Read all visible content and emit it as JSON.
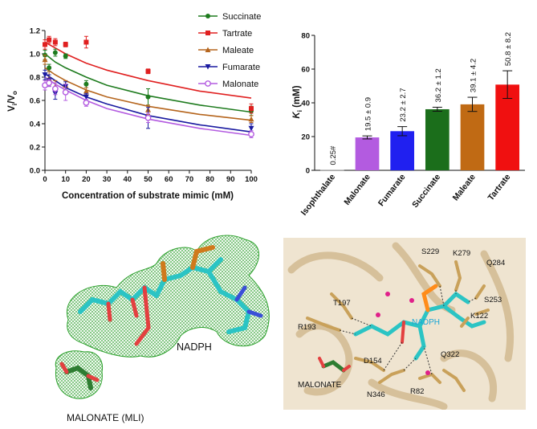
{
  "chart_data": [
    {
      "type": "scatter",
      "xlabel": "Concentration of substrate mimic (mM)",
      "ylabel": "Vi/Vo",
      "xlim": [
        0,
        100
      ],
      "ylim": [
        0,
        1.2
      ],
      "xticks": [
        0,
        10,
        20,
        30,
        40,
        50,
        60,
        70,
        80,
        90,
        100
      ],
      "yticks": [
        0.0,
        0.2,
        0.4,
        0.6,
        0.8,
        1.0,
        1.2
      ],
      "grid": false,
      "legend": "top-center",
      "series": [
        {
          "name": "Succinate",
          "color": "#1e7b1e",
          "marker": "circle",
          "x": [
            0,
            2,
            5,
            10,
            20,
            50,
            100
          ],
          "y": [
            0.99,
            0.88,
            1.01,
            0.98,
            0.74,
            0.63,
            0.51
          ],
          "err": [
            0.04,
            0.03,
            0.03,
            0.02,
            0.03,
            0.07,
            0.04
          ],
          "fit": [
            0,
            1.0,
            5,
            0.93,
            10,
            0.88,
            20,
            0.8,
            30,
            0.73,
            50,
            0.64,
            75,
            0.56,
            100,
            0.5
          ]
        },
        {
          "name": "Tartrate",
          "color": "#e02020",
          "marker": "square",
          "x": [
            0,
            2,
            5,
            10,
            20,
            50,
            100
          ],
          "y": [
            1.08,
            1.12,
            1.1,
            1.08,
            1.1,
            0.85,
            0.53
          ],
          "err": [
            0.04,
            0.03,
            0.03,
            0.02,
            0.05,
            0.02,
            0.04
          ],
          "fit": [
            0,
            1.1,
            5,
            1.05,
            10,
            1.0,
            20,
            0.92,
            30,
            0.86,
            50,
            0.77,
            75,
            0.68,
            100,
            0.62
          ]
        },
        {
          "name": "Maleate",
          "color": "#b5651d",
          "marker": "triangle-up",
          "x": [
            0,
            2,
            5,
            10,
            20,
            50,
            100
          ],
          "y": [
            0.95,
            0.79,
            0.72,
            0.73,
            0.68,
            0.52,
            0.44
          ],
          "err": [
            0.04,
            0.06,
            0.05,
            0.04,
            0.03,
            0.04,
            0.03
          ],
          "fit": [
            0,
            0.88,
            5,
            0.82,
            10,
            0.77,
            20,
            0.69,
            30,
            0.63,
            50,
            0.55,
            75,
            0.48,
            100,
            0.43
          ]
        },
        {
          "name": "Fumarate",
          "color": "#1a1aa0",
          "marker": "triangle-down",
          "x": [
            0,
            2,
            5,
            10,
            20,
            50,
            100
          ],
          "y": [
            0.82,
            0.77,
            0.66,
            0.72,
            0.63,
            0.45,
            0.36
          ],
          "err": [
            0.04,
            0.05,
            0.05,
            0.04,
            0.03,
            0.09,
            0.04
          ],
          "fit": [
            0,
            0.83,
            5,
            0.77,
            10,
            0.71,
            20,
            0.63,
            30,
            0.57,
            50,
            0.47,
            75,
            0.39,
            100,
            0.33
          ]
        },
        {
          "name": "Malonate",
          "color": "#b35be0",
          "marker": "open-circle",
          "x": [
            0,
            2,
            5,
            10,
            20,
            50,
            100
          ],
          "y": [
            0.73,
            0.75,
            0.7,
            0.67,
            0.58,
            0.45,
            0.31
          ],
          "err": [
            0.04,
            0.03,
            0.05,
            0.07,
            0.03,
            0.04,
            0.03
          ],
          "fit": [
            0,
            0.8,
            5,
            0.74,
            10,
            0.69,
            20,
            0.6,
            30,
            0.53,
            50,
            0.44,
            75,
            0.36,
            100,
            0.3
          ]
        }
      ]
    },
    {
      "type": "bar",
      "ylabel": "Ki (mM)",
      "ylim": [
        0,
        80
      ],
      "yticks": [
        0,
        20,
        40,
        60,
        80
      ],
      "grid": false,
      "categories": [
        "Isophthalate",
        "Malonate",
        "Fumarate",
        "Succinate",
        "Maleate",
        "Tartrate"
      ],
      "values": [
        0.25,
        19.5,
        23.2,
        36.2,
        39.1,
        50.8
      ],
      "errors": [
        0.0,
        0.9,
        2.7,
        1.2,
        4.2,
        8.2
      ],
      "colors": [
        "#8a8a8a",
        "#b35be0",
        "#2020f0",
        "#1b6e1b",
        "#c06a14",
        "#f01010"
      ],
      "labels": [
        "0.25#",
        "19.5 ± 0.9",
        "23.2 ± 2.7",
        "36.2 ± 1.2",
        "39.1 ± 4.2",
        "50.8 ± 8.2"
      ]
    }
  ],
  "panel_c": {
    "nadph_label": "NADPH",
    "malonate_label": "MALONATE (MLI)"
  },
  "panel_d": {
    "residues": [
      "S229",
      "K279",
      "Q284",
      "S253",
      "K122",
      "T197",
      "R193",
      "D154",
      "Q322",
      "R82",
      "N346"
    ],
    "nadph_label": "NADPH",
    "malonate_label": "MALONATE"
  }
}
